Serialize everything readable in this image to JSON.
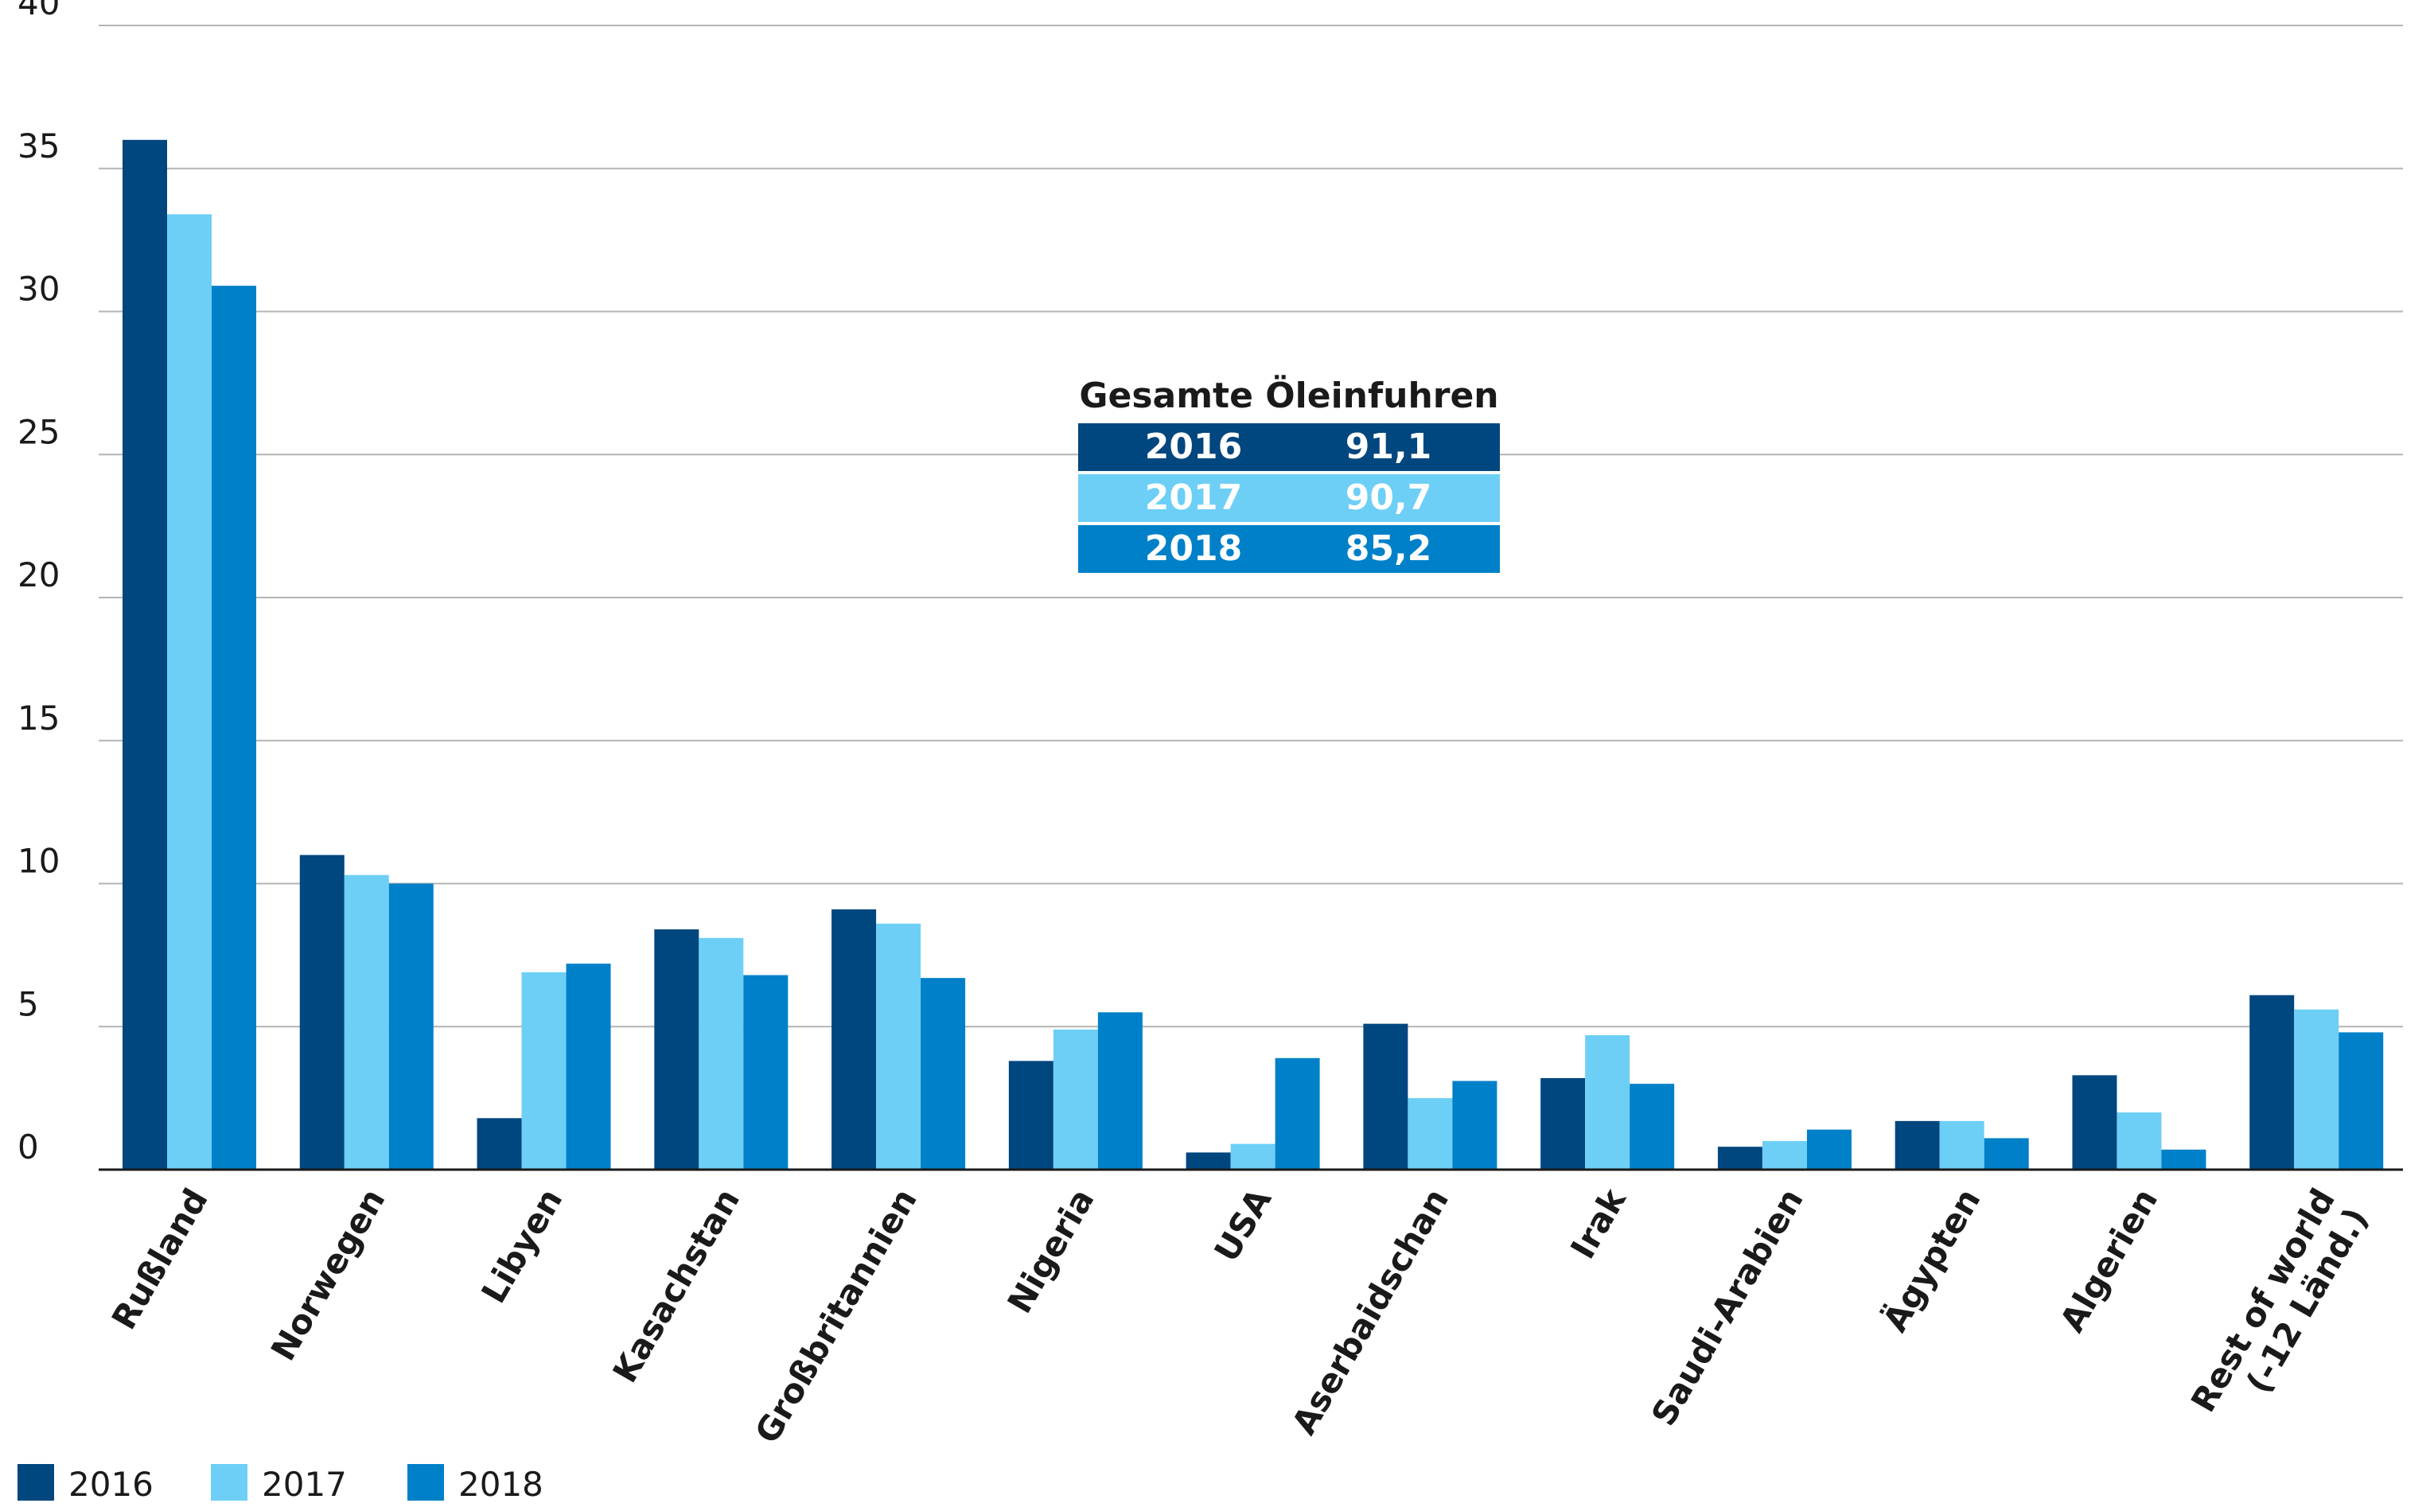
{
  "colors": {
    "s2016": "#00467f",
    "s2017": "#6dcff6",
    "s2018": "#0080c8",
    "grid": "#b4b4b4",
    "axis": "#1a1a1a"
  },
  "chart_data": {
    "type": "bar",
    "categories": [
      "Rußland",
      "Norwegen",
      "Libyen",
      "Kasachstan",
      "Großbritannien",
      "Nigeria",
      "USA",
      "Aserbaidschan",
      "Irak",
      "Saudi-Arabien",
      "Ägypten",
      "Algerien",
      "Rest of world\n(-12 Länd.)"
    ],
    "series": [
      {
        "name": "2016",
        "values": [
          36.0,
          11.0,
          1.8,
          8.4,
          9.1,
          3.8,
          0.6,
          5.1,
          3.2,
          0.8,
          1.7,
          3.3,
          6.1
        ]
      },
      {
        "name": "2017",
        "values": [
          33.4,
          10.3,
          6.9,
          8.1,
          8.6,
          4.9,
          0.9,
          2.5,
          4.7,
          1.0,
          1.7,
          2.0,
          5.6
        ]
      },
      {
        "name": "2018",
        "values": [
          30.9,
          10.0,
          7.2,
          6.8,
          6.7,
          5.5,
          3.9,
          3.1,
          3.0,
          1.4,
          1.1,
          0.7,
          4.8
        ]
      }
    ],
    "yticks": [
      "0",
      "5",
      "10",
      "15",
      "20",
      "25",
      "30",
      "35",
      "40"
    ],
    "ylim": [
      0,
      40
    ],
    "grid": true,
    "legend": {
      "position": "bottom-left",
      "labels": [
        "2016",
        "2017",
        "2018"
      ]
    },
    "summary_table": {
      "title": "Gesamte Öleinfuhren",
      "rows": [
        {
          "year": "2016",
          "value": "91,1"
        },
        {
          "year": "2017",
          "value": "90,7"
        },
        {
          "year": "2018",
          "value": "85,2"
        }
      ]
    }
  }
}
